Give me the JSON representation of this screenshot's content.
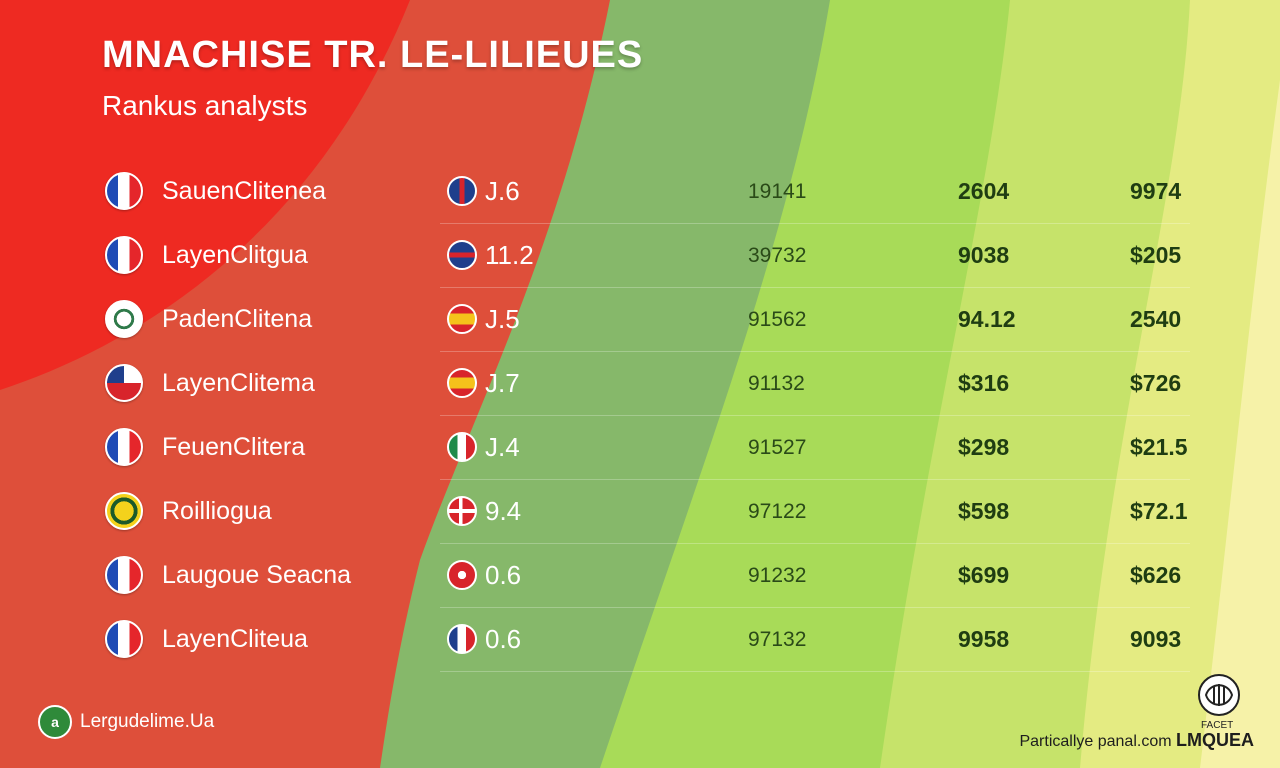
{
  "header": {
    "title": "MNACHISE TR. LE-LILIEUES",
    "subtitle": "Rankus analysts"
  },
  "rows": [
    {
      "team": "SauenClitenea",
      "flag_icon": "france-flag-icon",
      "rank_icon": "union-flag-icon",
      "rank": "J.6",
      "col1": "19141",
      "col2": "2604",
      "col3": "9974"
    },
    {
      "team": "LayenClitgua",
      "flag_icon": "france-flag-icon",
      "rank_icon": "union-flag-icon",
      "rank": "11.2",
      "col1": "39732",
      "col2": "9038",
      "col3": "$205"
    },
    {
      "team": "PadenClitena",
      "flag_icon": "club-crest-icon",
      "rank_icon": "spain-flag-icon",
      "rank": "J.5",
      "col1": "91562",
      "col2": "94.12",
      "col3": "2540"
    },
    {
      "team": "LayenClitema",
      "flag_icon": "chile-flag-icon",
      "rank_icon": "spain-flag-icon",
      "rank": "J.7",
      "col1": "91132",
      "col2": "$316",
      "col3": "$726"
    },
    {
      "team": "FeuenClitera",
      "flag_icon": "france-flag-icon",
      "rank_icon": "mexico-flag-icon",
      "rank": "J.4",
      "col1": "91527",
      "col2": "$298",
      "col3": "$21.5"
    },
    {
      "team": "Roilliogua",
      "flag_icon": "yellow-crest-icon",
      "rank_icon": "denmark-flag-icon",
      "rank": "9.4",
      "col1": "97122",
      "col2": "$598",
      "col3": "$72.1"
    },
    {
      "team": "Laugoue Seacna",
      "flag_icon": "france-crest-icon",
      "rank_icon": "red-flag-icon",
      "rank": "0.6",
      "col1": "91232",
      "col2": "$699",
      "col3": "$626"
    },
    {
      "team": "LayenClitеua",
      "flag_icon": "france-flag-icon",
      "rank_icon": "france-flag-icon",
      "rank": "0.6",
      "col1": "97132",
      "col2": "9958",
      "col3": "9093"
    }
  ],
  "footer": {
    "left_badge": "a",
    "left_text": "Lergudelime.Ua",
    "right_prefix": "Particallye panal.com",
    "right_brand": "LMQUEA",
    "brand_small": "FACET"
  },
  "colors": {
    "red": "#e8322a",
    "sage": "#7aa86a",
    "green": "#9dd65a",
    "yellow": "#e6ec7a"
  }
}
